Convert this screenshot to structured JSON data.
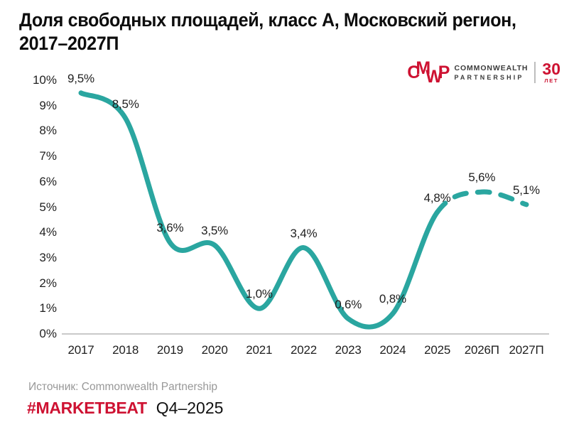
{
  "title": {
    "line1": "Доля свободных площадей, класс А, Московский регион,",
    "line2": "2017–2027П"
  },
  "logo": {
    "mark_letters": [
      "C",
      "M",
      "W",
      "P"
    ],
    "name_line1": "COMMONWEALTH",
    "name_line2": "PARTNERSHIP",
    "badge_number": "30",
    "badge_caption": "ЛЕТ",
    "brand_color": "#CE1232"
  },
  "chart_data": {
    "type": "line",
    "title": "Доля свободных площадей, класс А, Московский регион, 2017–2027П",
    "categories": [
      "2017",
      "2018",
      "2019",
      "2020",
      "2021",
      "2022",
      "2023",
      "2024",
      "2025",
      "2026П",
      "2027П"
    ],
    "values": [
      9.5,
      8.5,
      3.6,
      3.5,
      1.0,
      3.4,
      0.6,
      0.8,
      4.8,
      5.6,
      5.1
    ],
    "point_labels": [
      "9,5%",
      "8,5%",
      "3,6%",
      "3,5%",
      "1,0%",
      "3,4%",
      "0,6%",
      "0,8%",
      "4,8%",
      "5,6%",
      "5,1%"
    ],
    "forecast_from_index": 8,
    "ylim": [
      0,
      10
    ],
    "ytick_labels": [
      "10%",
      "9%",
      "8%",
      "7%",
      "6%",
      "5%",
      "4%",
      "3%",
      "2%",
      "1%",
      "0%"
    ],
    "grid": false,
    "legend": "none",
    "line_color": "#2AA6A0",
    "line_style_actual": "solid",
    "line_style_forecast": "dashed"
  },
  "source": "Источник: Commonwealth Partnership",
  "footer": {
    "hashtag": "#MARKETBEAT",
    "period": "Q4–2025",
    "hashtag_color": "#CE1232"
  }
}
